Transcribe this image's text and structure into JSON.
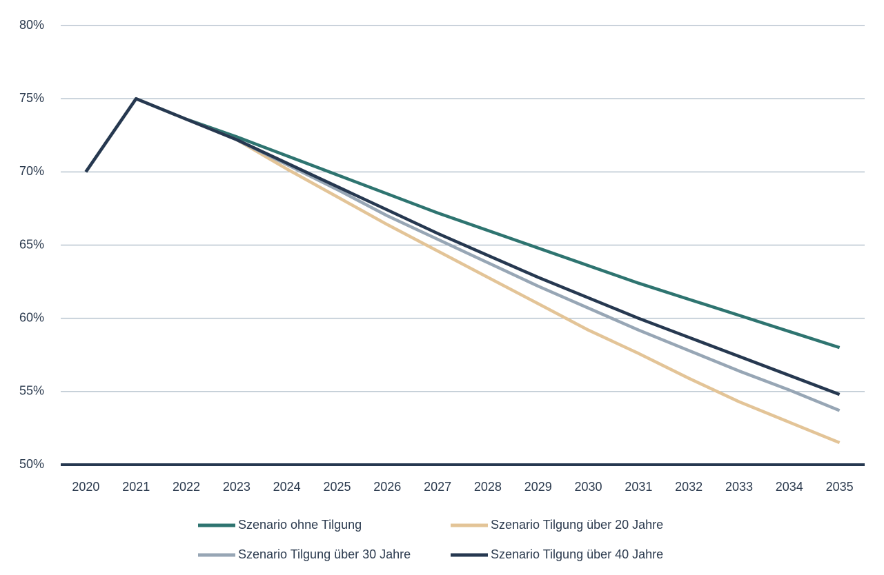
{
  "chart_data": {
    "type": "line",
    "categories": [
      "2020",
      "2021",
      "2022",
      "2023",
      "2024",
      "2025",
      "2026",
      "2027",
      "2028",
      "2029",
      "2030",
      "2031",
      "2032",
      "2033",
      "2034",
      "2035"
    ],
    "series": [
      {
        "name": "Szenario ohne Tilgung",
        "color": "#2e7470",
        "values": [
          70,
          75,
          73.6,
          72.4,
          71.1,
          69.8,
          68.5,
          67.2,
          66.0,
          64.8,
          63.6,
          62.4,
          61.3,
          60.2,
          59.1,
          58.0
        ]
      },
      {
        "name": "Szenario Tilgung über 20 Jahre",
        "color": "#e3c497",
        "values": [
          70,
          75,
          73.6,
          72.2,
          70.2,
          68.3,
          66.4,
          64.6,
          62.8,
          61.0,
          59.2,
          57.6,
          55.9,
          54.3,
          52.9,
          51.5
        ]
      },
      {
        "name": "Szenario Tilgung über 30 Jahre",
        "color": "#97a6b5",
        "values": [
          70,
          75,
          73.6,
          72.2,
          70.5,
          68.8,
          67.0,
          65.4,
          63.8,
          62.2,
          60.7,
          59.2,
          57.8,
          56.4,
          55.1,
          53.7
        ]
      },
      {
        "name": "Szenario Tilgung über 40 Jahre",
        "color": "#263850",
        "values": [
          70,
          75,
          73.6,
          72.2,
          70.6,
          69.0,
          67.4,
          65.8,
          64.3,
          62.8,
          61.4,
          60.0,
          58.7,
          57.4,
          56.1,
          54.8
        ]
      }
    ],
    "ylim": [
      50,
      80
    ],
    "yticks": [
      {
        "value": 50,
        "label": "50%"
      },
      {
        "value": 55,
        "label": "55%"
      },
      {
        "value": 60,
        "label": "60%"
      },
      {
        "value": 65,
        "label": "65%"
      },
      {
        "value": 70,
        "label": "70%"
      },
      {
        "value": 75,
        "label": "75%"
      },
      {
        "value": 80,
        "label": "80%"
      }
    ],
    "grid": true
  }
}
